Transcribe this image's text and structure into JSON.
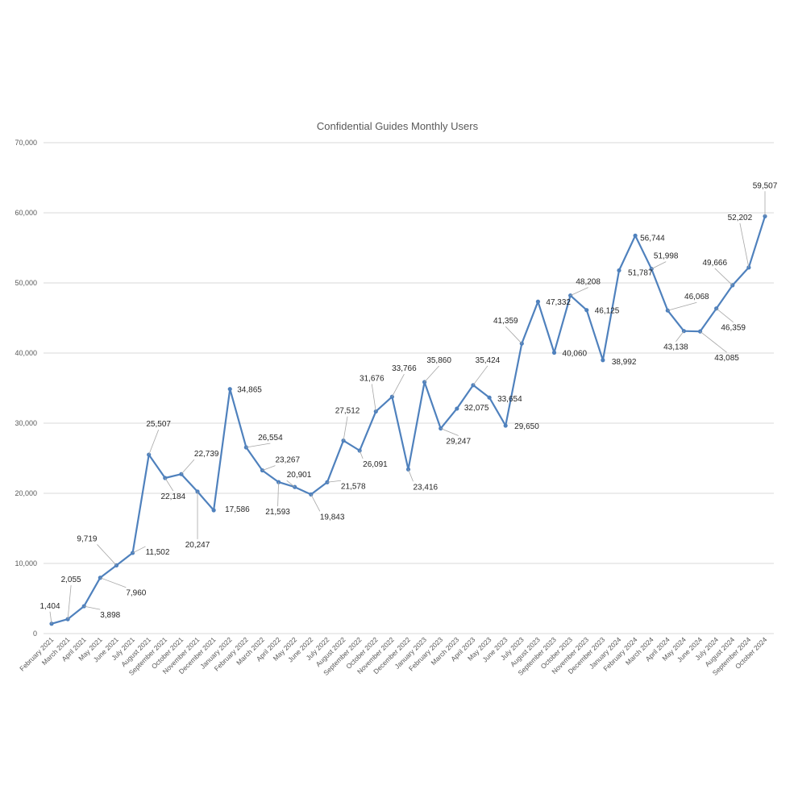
{
  "chart_data": {
    "type": "line",
    "title": "Confidential Guides Monthly Users",
    "xlabel": "",
    "ylabel": "",
    "ylim": [
      0,
      70000
    ],
    "y_ticks": [
      "0",
      "10,000",
      "20,000",
      "30,000",
      "40,000",
      "50,000",
      "60,000",
      "70,000"
    ],
    "grid": true,
    "legend": "none",
    "line_color": "#4f81bd",
    "categories": [
      "February 2021",
      "March 2021",
      "April 2021",
      "May 2021",
      "June 2021",
      "July 2021",
      "August 2021",
      "September 2021",
      "October 2021",
      "November 2021",
      "December 2021",
      "January 2022",
      "February 2022",
      "March 2022",
      "April 2022",
      "May 2022",
      "June 2022",
      "July 2022",
      "August 2022",
      "September 2022",
      "October 2022",
      "November 2022",
      "December 2022",
      "January 2023",
      "February 2023",
      "March 2023",
      "April 2023",
      "May 2023",
      "June 2023",
      "July 2023",
      "August 2023",
      "September 2023",
      "October 2023",
      "November 2023",
      "December 2023",
      "January 2024",
      "February 2024",
      "March 2024",
      "April 2024",
      "May 2024",
      "June 2024",
      "July 2024",
      "August 2024",
      "September 2024",
      "October 2024"
    ],
    "series": [
      {
        "values": [
          1404,
          2055,
          3898,
          7960,
          9719,
          11502,
          25507,
          22184,
          22739,
          20247,
          17586,
          34865,
          26554,
          23267,
          21593,
          20901,
          19843,
          21578,
          27512,
          26091,
          31676,
          33766,
          23416,
          35860,
          29247,
          32075,
          35424,
          33654,
          29650,
          41359,
          47332,
          40060,
          48208,
          46125,
          38992,
          51787,
          56744,
          51998,
          46068,
          43138,
          43085,
          46359,
          49666,
          52202,
          59507
        ],
        "labels": [
          "1,404",
          "2,055",
          "3,898",
          "7,960",
          "9,719",
          "11,502",
          "25,507",
          "22,184",
          "22,739",
          "20,247",
          "17,586",
          "34,865",
          "26,554",
          "23,267",
          "21,593",
          "20,901",
          "19,843",
          "21,578",
          "27,512",
          "26,091",
          "31,676",
          "33,766",
          "23,416",
          "35,860",
          "29,247",
          "32,075",
          "35,424",
          "33,654",
          "29,650",
          "41,359",
          "47,332",
          "40,060",
          "48,208",
          "46,125",
          "38,992",
          "51,787",
          "56,744",
          "51,998",
          "46,068",
          "43,138",
          "43,085",
          "46,359",
          "49,666",
          "52,202",
          "59,507"
        ]
      }
    ]
  }
}
